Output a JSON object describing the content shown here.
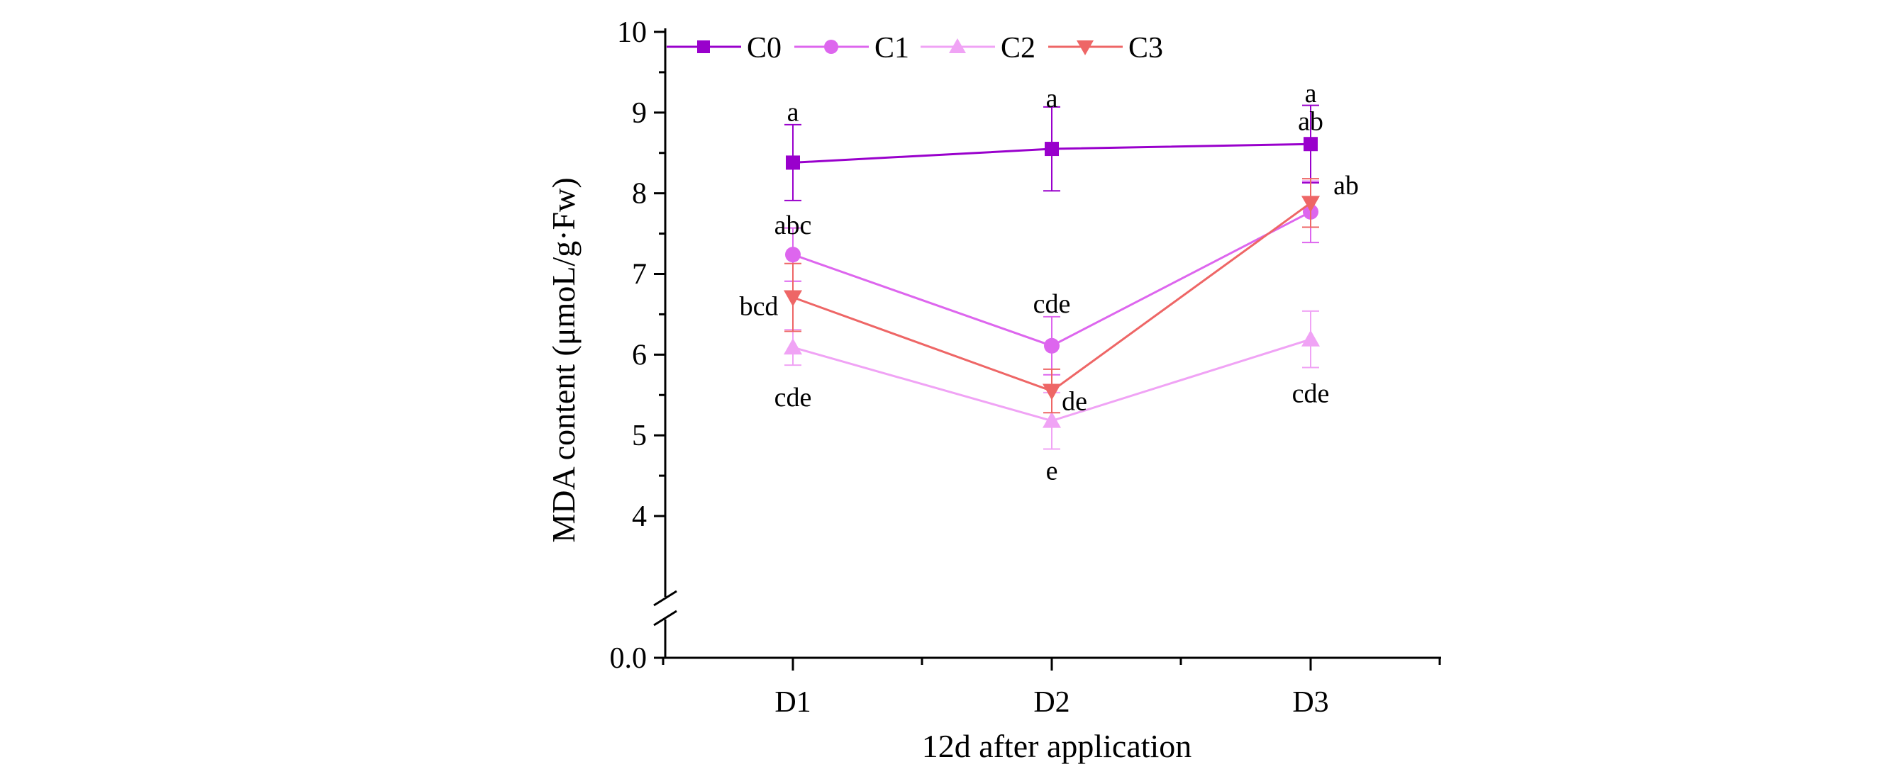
{
  "chart_data": {
    "type": "line",
    "title": "",
    "xlabel": "12d after application",
    "ylabel": "MDA content (μmoL/g·Fw)",
    "categories": [
      "D1",
      "D2",
      "D3"
    ],
    "y_ticks": [
      "0.0",
      "4",
      "5",
      "6",
      "7",
      "8",
      "9",
      "10"
    ],
    "ylim": [
      3.5,
      10
    ],
    "y_axis_break": true,
    "legend_position": "top",
    "series": [
      {
        "name": "C0",
        "marker": "square",
        "color": "#9900cc",
        "values": [
          8.38,
          8.55,
          8.61
        ],
        "errors": [
          0.47,
          0.52,
          0.48
        ],
        "sig_labels": [
          "a",
          "a",
          "a"
        ]
      },
      {
        "name": "C1",
        "marker": "circle",
        "color": "#dd66ee",
        "values": [
          7.24,
          6.11,
          7.77
        ],
        "errors": [
          0.33,
          0.36,
          0.38
        ],
        "sig_labels": [
          "abc",
          "cde",
          "ab"
        ]
      },
      {
        "name": "C2",
        "marker": "triangle-up",
        "color": "#f0a3f5",
        "values": [
          6.09,
          5.18,
          6.19
        ],
        "errors": [
          0.22,
          0.35,
          0.35
        ],
        "sig_labels": [
          "cde",
          "e",
          "cde"
        ]
      },
      {
        "name": "C3",
        "marker": "triangle-down",
        "color": "#ee6666",
        "values": [
          6.71,
          5.55,
          7.88
        ],
        "errors": [
          0.42,
          0.27,
          0.3
        ],
        "sig_labels": [
          "bcd",
          "de",
          "ab"
        ]
      }
    ]
  }
}
